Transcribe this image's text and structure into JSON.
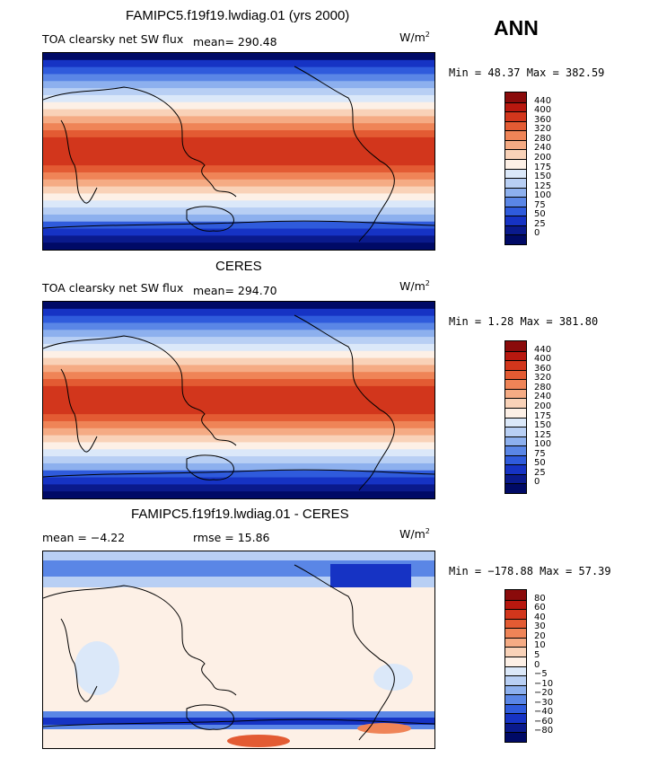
{
  "season": "ANN",
  "panels": [
    {
      "title": "FAMIPC5.f19f19.lwdiag.01 (yrs 2000)",
      "variable": "TOA clearsky net SW flux",
      "stat_left": "",
      "mean": "mean= 290.48",
      "units": "W/m",
      "units_exp": "2",
      "minmax": "Min =  48.37 Max = 382.59",
      "colorbar_labels": [
        "440",
        "400",
        "360",
        "320",
        "280",
        "240",
        "200",
        "175",
        "150",
        "125",
        "100",
        "75",
        "50",
        "25",
        "0"
      ],
      "colors": [
        "#8a0b0b",
        "#b8180f",
        "#d2361c",
        "#e35b33",
        "#ef8457",
        "#f5ab84",
        "#f9d2b8",
        "#fdf0e6",
        "#dbe8f9",
        "#b8cff4",
        "#8db0ee",
        "#5a86e6",
        "#2f5bdc",
        "#1633c4",
        "#0a1a8c",
        "#000a66"
      ]
    },
    {
      "title": "CERES",
      "variable": "TOA clearsky net SW flux",
      "stat_left": "",
      "mean": "mean= 294.70",
      "units": "W/m",
      "units_exp": "2",
      "minmax": "Min =   1.28 Max = 381.80",
      "colorbar_labels": [
        "440",
        "400",
        "360",
        "320",
        "280",
        "240",
        "200",
        "175",
        "150",
        "125",
        "100",
        "75",
        "50",
        "25",
        "0"
      ],
      "colors": [
        "#8a0b0b",
        "#b8180f",
        "#d2361c",
        "#e35b33",
        "#ef8457",
        "#f5ab84",
        "#f9d2b8",
        "#fdf0e6",
        "#dbe8f9",
        "#b8cff4",
        "#8db0ee",
        "#5a86e6",
        "#2f5bdc",
        "#1633c4",
        "#0a1a8c",
        "#000a66"
      ]
    },
    {
      "title": "FAMIPC5.f19f19.lwdiag.01 - CERES",
      "variable": "",
      "stat_left": "mean =  −4.22",
      "mean": "rmse =  15.86",
      "units": "W/m",
      "units_exp": "2",
      "minmax": "Min = −178.88 Max =  57.39",
      "colorbar_labels": [
        "80",
        "60",
        "40",
        "30",
        "20",
        "10",
        "5",
        "0",
        "−5",
        "−10",
        "−20",
        "−30",
        "−40",
        "−60",
        "−80"
      ],
      "colors": [
        "#8a0b0b",
        "#b8180f",
        "#d2361c",
        "#e35b33",
        "#ef8457",
        "#f5ab84",
        "#f9d2b8",
        "#fdf0e6",
        "#dbe8f9",
        "#b8cff4",
        "#8db0ee",
        "#5a86e6",
        "#2f5bdc",
        "#1633c4",
        "#0a1a8c",
        "#000a66"
      ]
    }
  ]
}
